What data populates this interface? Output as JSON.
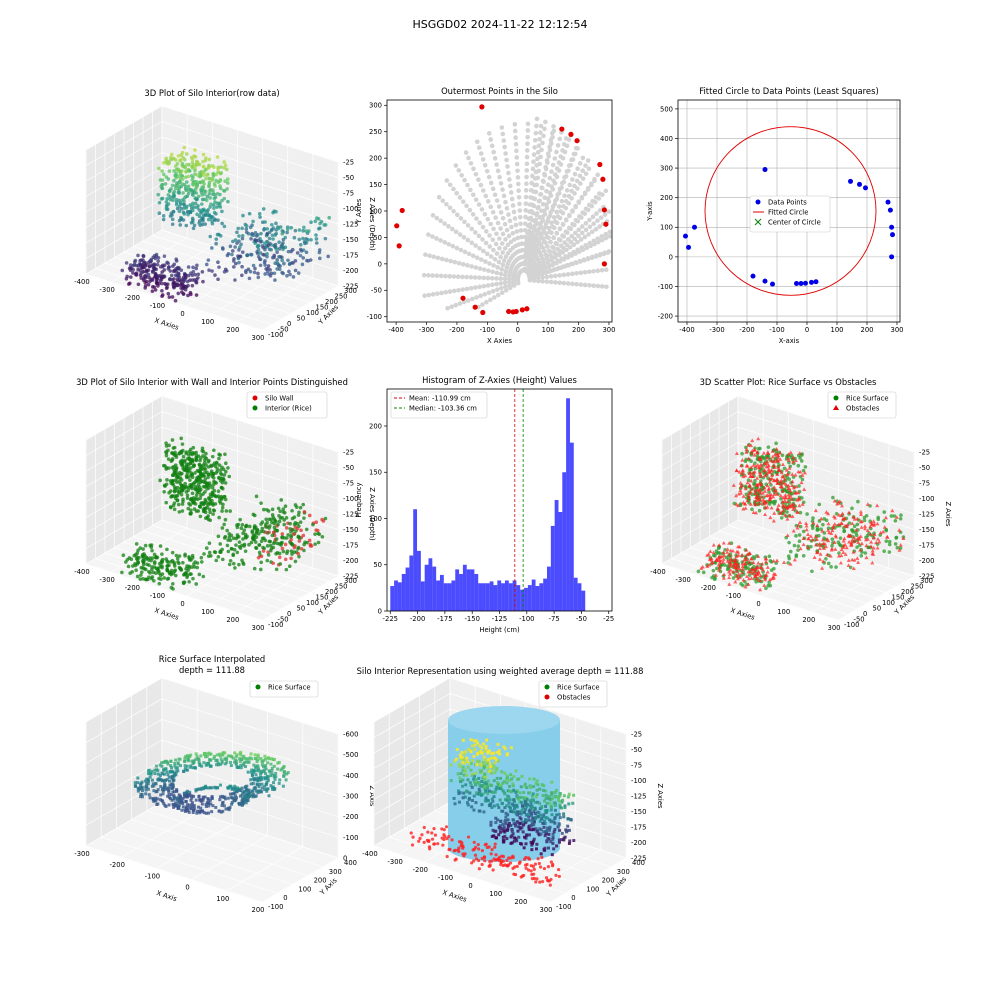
{
  "figure": {
    "suptitle": "HSGGD02 2024-11-22 12:12:54"
  },
  "chart_data": [
    {
      "type": "scatter3d",
      "title": "3D Plot of Silo Interior(row data)",
      "xlabel": "X Axies",
      "ylabel": "Y Axies",
      "zlabel": "Z Axies (Depth)",
      "xticks": [
        "-400",
        "-300",
        "-200",
        "-100",
        "0",
        "100",
        "200",
        "300"
      ],
      "yticks": [
        "-100",
        "-50",
        "0",
        "50",
        "100",
        "150",
        "200",
        "250",
        "300"
      ],
      "zticks": [
        "-25",
        "-50",
        "-75",
        "-100",
        "-125",
        "-150",
        "-175",
        "-200",
        "-225"
      ],
      "colormap": "viridis"
    },
    {
      "type": "scatter",
      "title": "Outermost Points in the Silo",
      "xlabel": "X Axies",
      "ylabel": "Y Axies",
      "xlim": [
        -430,
        310
      ],
      "ylim": [
        -110,
        310
      ],
      "xticks": [
        "-400",
        "-300",
        "-200",
        "-100",
        "0",
        "100",
        "200",
        "300"
      ],
      "yticks": [
        "-100",
        "-50",
        "0",
        "50",
        "100",
        "150",
        "200",
        "250",
        "300"
      ],
      "outermost_points": [
        [
          -118,
          297
        ],
        [
          -380,
          101
        ],
        [
          -398,
          72
        ],
        [
          -390,
          34
        ],
        [
          -180,
          -65
        ],
        [
          -140,
          -82
        ],
        [
          -115,
          -92
        ],
        [
          -30,
          -90
        ],
        [
          -15,
          -91
        ],
        [
          -5,
          -90
        ],
        [
          15,
          -87
        ],
        [
          30,
          -85
        ],
        [
          145,
          255
        ],
        [
          175,
          245
        ],
        [
          195,
          233
        ],
        [
          270,
          188
        ],
        [
          280,
          160
        ],
        [
          285,
          102
        ],
        [
          290,
          75
        ],
        [
          285,
          0
        ]
      ],
      "interior_color": "#d3d3d3",
      "outermost_color": "#e00000"
    },
    {
      "type": "scatter",
      "title": "Fitted Circle to Data Points (Least Squares)",
      "xlabel": "X-axis",
      "ylabel": "Y-axis",
      "xlim": [
        -430,
        310
      ],
      "ylim": [
        -220,
        530
      ],
      "xticks": [
        "-400",
        "-300",
        "-200",
        "-100",
        "0",
        "100",
        "200",
        "300"
      ],
      "yticks": [
        "-200",
        "-100",
        "0",
        "100",
        "200",
        "300",
        "400",
        "500"
      ],
      "points": [
        [
          -405,
          70
        ],
        [
          -395,
          32
        ],
        [
          -375,
          100
        ],
        [
          -140,
          295
        ],
        [
          -180,
          -65
        ],
        [
          -140,
          -82
        ],
        [
          -115,
          -92
        ],
        [
          -35,
          -90
        ],
        [
          -20,
          -90
        ],
        [
          -5,
          -89
        ],
        [
          15,
          -86
        ],
        [
          30,
          -84
        ],
        [
          145,
          255
        ],
        [
          175,
          245
        ],
        [
          195,
          233
        ],
        [
          270,
          185
        ],
        [
          278,
          158
        ],
        [
          282,
          100
        ],
        [
          285,
          75
        ],
        [
          282,
          0
        ]
      ],
      "circle_center": [
        -55,
        155
      ],
      "circle_radius": 285,
      "legend": [
        "Data Points",
        "Fitted Circle",
        "Center of Circle"
      ]
    },
    {
      "type": "scatter3d",
      "title": "3D Plot of Silo Interior with Wall and Interior Points Distinguished",
      "xlabel": "X Axies",
      "ylabel": "Y Axies",
      "zlabel": "Z Axies (Depth)",
      "xticks": [
        "-400",
        "-300",
        "-200",
        "-100",
        "0",
        "100",
        "200",
        "300"
      ],
      "yticks": [
        "-100",
        "-50",
        "0",
        "50",
        "100",
        "150",
        "200",
        "250",
        "300"
      ],
      "zticks": [
        "-25",
        "-50",
        "-75",
        "-100",
        "-125",
        "-150",
        "-175",
        "-200",
        "-225"
      ],
      "legend": [
        "Silo Wall",
        "Interior (Rice)"
      ]
    },
    {
      "type": "bar",
      "title": "Histogram of Z-Axies (Height) Values",
      "xlabel": "Height (cm)",
      "ylabel": "Frequency",
      "xlim": [
        -228,
        -22
      ],
      "ylim": [
        0,
        240
      ],
      "xticks": [
        "-225",
        "-200",
        "-175",
        "-150",
        "-125",
        "-100",
        "-75",
        "-50",
        "-25"
      ],
      "yticks": [
        "0",
        "50",
        "100",
        "150",
        "200"
      ],
      "bin_start": -225,
      "bin_width": 3.5,
      "values": [
        27,
        33,
        31,
        40,
        47,
        60,
        110,
        65,
        32,
        50,
        57,
        48,
        33,
        39,
        30,
        30,
        33,
        45,
        40,
        50,
        45,
        45,
        40,
        30,
        30,
        30,
        32,
        28,
        33,
        30,
        33,
        30,
        33,
        28,
        23,
        25,
        28,
        34,
        27,
        30,
        35,
        48,
        92,
        120,
        107,
        150,
        230,
        182,
        36,
        30,
        22
      ],
      "mean": -110.99,
      "median": -103.36,
      "legend": [
        "Mean: -110.99 cm",
        "Median: -103.36 cm"
      ]
    },
    {
      "type": "scatter3d",
      "title": "3D Scatter Plot: Rice Surface vs Obstacles",
      "xlabel": "X Axies",
      "ylabel": "Y Axies",
      "zlabel": "Z Axies",
      "xticks": [
        "-400",
        "-300",
        "-200",
        "-100",
        "0",
        "100",
        "200",
        "300"
      ],
      "yticks": [
        "-100",
        "-50",
        "0",
        "50",
        "100",
        "150",
        "200",
        "250",
        "300"
      ],
      "zticks": [
        "-25",
        "-50",
        "-75",
        "-100",
        "-125",
        "-150",
        "-175",
        "-200",
        "-225"
      ],
      "legend": [
        "Rice Surface",
        "Obstacles"
      ]
    },
    {
      "type": "surface3d",
      "title": "Rice Surface Interpolated",
      "subtitle": "depth = 111.88",
      "xlabel": "X Axis",
      "ylabel": "Y Axis",
      "zlabel": "Z Axis",
      "xticks": [
        "-300",
        "-200",
        "-100",
        "0",
        "100",
        "200"
      ],
      "yticks": [
        "-100",
        "0",
        "100",
        "200",
        "300",
        "400"
      ],
      "zticks": [
        "0",
        "-100",
        "-200",
        "-300",
        "-400",
        "-500",
        "-600"
      ],
      "legend": [
        "Rice Surface"
      ]
    },
    {
      "type": "surface3d",
      "title": "Silo Interior Representation using weighted average depth = 111.88",
      "xlabel": "X Axies",
      "ylabel": "Y Axies",
      "zlabel": "Z Axies",
      "xticks": [
        "-400",
        "-300",
        "-200",
        "-100",
        "0",
        "100",
        "200",
        "300"
      ],
      "yticks": [
        "-100",
        "0",
        "100",
        "200",
        "300",
        "400"
      ],
      "zticks": [
        "-25",
        "-50",
        "-75",
        "-100",
        "-125",
        "-150",
        "-175",
        "-200",
        "-225"
      ],
      "legend": [
        "Rice Surface",
        "Obstacles"
      ]
    }
  ]
}
